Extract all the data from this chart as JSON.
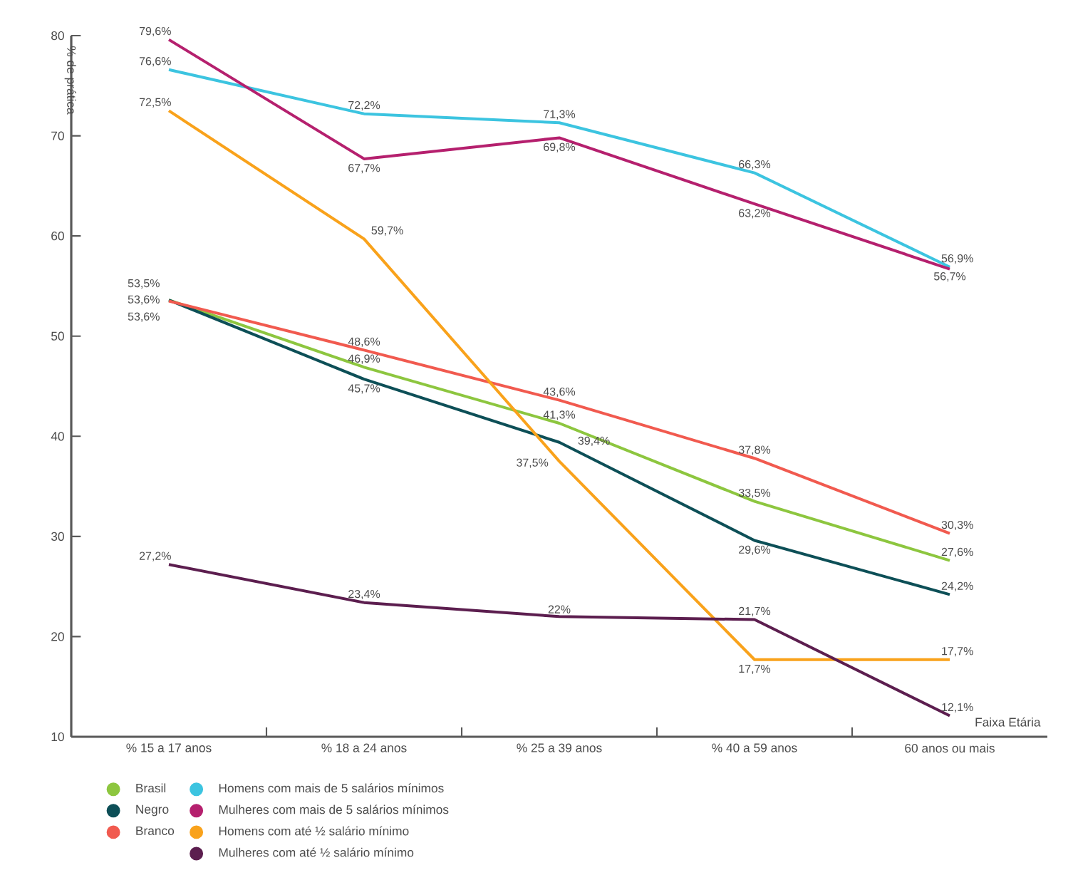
{
  "chart_data": {
    "type": "line",
    "xlabel": "Faixa Etária",
    "ylabel": "% de prática",
    "categories": [
      "% 15 a 17 anos",
      "% 18 a 24 anos",
      "% 25 a 39 anos",
      "% 40 a 59 anos",
      "60 anos ou mais"
    ],
    "ylim": [
      10,
      80
    ],
    "yticks": [
      10,
      20,
      30,
      40,
      50,
      60,
      70,
      80
    ],
    "grid": false,
    "legend": "bottom",
    "marker": "none",
    "line_style": "solid",
    "series": [
      {
        "name": "Brasil",
        "color": "#8dc63f",
        "values": [
          53.6,
          46.9,
          41.3,
          33.5,
          27.6
        ],
        "value_labels": [
          "53,6%",
          "46,9%",
          "41,3%",
          "33,5%",
          "27,6%"
        ]
      },
      {
        "name": "Negro",
        "color": "#0d4f57",
        "values": [
          53.6,
          45.7,
          39.4,
          29.6,
          24.2
        ],
        "value_labels": [
          "53,6%",
          "45,7%",
          "39,4%",
          "29,6%",
          "24,2%"
        ]
      },
      {
        "name": "Branco",
        "color": "#f15a4f",
        "values": [
          53.5,
          48.6,
          43.6,
          37.8,
          30.3
        ],
        "value_labels": [
          "53,5%",
          "48,6%",
          "43,6%",
          "37,8%",
          "30,3%"
        ]
      },
      {
        "name": "Homens com mais de 5 salários mínimos",
        "color": "#3cc4e0",
        "values": [
          76.6,
          72.2,
          71.3,
          66.3,
          56.9
        ],
        "value_labels": [
          "76,6%",
          "72,2%",
          "71,3%",
          "66,3%",
          "56,9%"
        ]
      },
      {
        "name": "Mulheres com mais de 5 salários mínimos",
        "color": "#b5206e",
        "values": [
          79.6,
          67.7,
          69.8,
          63.2,
          56.7
        ],
        "value_labels": [
          "79,6%",
          "67,7%",
          "69,8%",
          "63,2%",
          "56,7%"
        ]
      },
      {
        "name": "Homens com até ½ salário mínimo",
        "color": "#f9a21b",
        "values": [
          72.5,
          59.7,
          37.5,
          17.7,
          17.7
        ],
        "value_labels": [
          "72,5%",
          "59,7%",
          "37,5%",
          "17,7%",
          "17,7%"
        ]
      },
      {
        "name": "Mulheres com até ½ salário mínimo",
        "color": "#5c1e4f",
        "values": [
          27.2,
          23.4,
          22,
          21.7,
          12.1
        ],
        "value_labels": [
          "27,2%",
          "23,4%",
          "22%",
          "21,7%",
          "12,1%"
        ]
      }
    ]
  }
}
